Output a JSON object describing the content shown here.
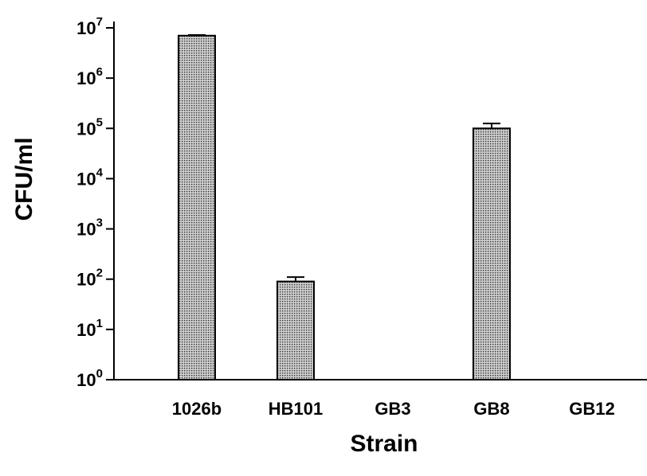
{
  "chart_data": {
    "type": "bar",
    "xlabel": "Strain",
    "ylabel": "CFU/ml",
    "yscale": "log",
    "ylim": [
      1,
      10000000
    ],
    "y_ticks": [
      {
        "value": 1,
        "base": "10",
        "exp": "0"
      },
      {
        "value": 10,
        "base": "10",
        "exp": "1"
      },
      {
        "value": 100,
        "base": "10",
        "exp": "2"
      },
      {
        "value": 1000,
        "base": "10",
        "exp": "3"
      },
      {
        "value": 10000,
        "base": "10",
        "exp": "4"
      },
      {
        "value": 100000,
        "base": "10",
        "exp": "5"
      },
      {
        "value": 1000000,
        "base": "10",
        "exp": "6"
      },
      {
        "value": 10000000,
        "base": "10",
        "exp": "7"
      }
    ],
    "categories": [
      "1026b",
      "HB101",
      "GB3",
      "GB8",
      "GB12"
    ],
    "values": [
      7000000,
      90,
      0,
      100000,
      0
    ],
    "error_upper": [
      7200000,
      110,
      null,
      125000,
      null
    ],
    "bar_fill": "#c8c8c8",
    "bar_dot": "#333333",
    "axis_color": "#000000",
    "grid": false,
    "legend": "none"
  }
}
